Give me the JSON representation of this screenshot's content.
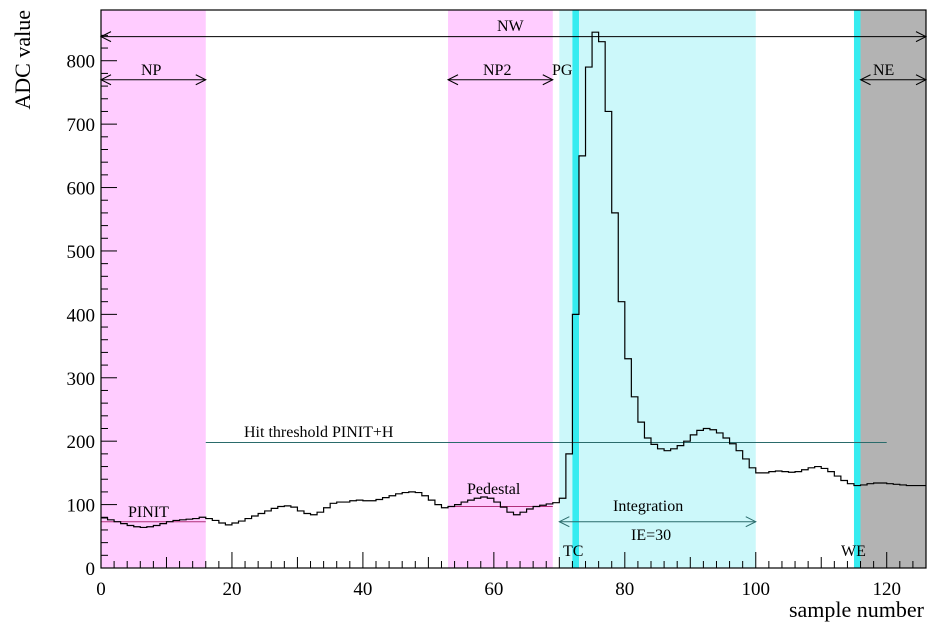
{
  "chart_data": {
    "type": "line",
    "xlabel": "sample number",
    "ylabel": "ADC value",
    "xlim": [
      0,
      126
    ],
    "ylim": [
      0,
      880
    ],
    "x_ticks": [
      0,
      20,
      40,
      60,
      80,
      100,
      120
    ],
    "y_ticks": [
      0,
      100,
      200,
      300,
      400,
      500,
      600,
      700,
      800
    ],
    "grid": false,
    "series": [
      {
        "style": "step",
        "values": [
          79,
          76,
          73,
          70,
          67,
          65,
          64,
          65,
          67,
          70,
          73,
          75,
          76,
          77,
          78,
          80,
          78,
          75,
          71,
          68,
          71,
          74,
          78,
          82,
          86,
          90,
          94,
          97,
          98,
          96,
          90,
          86,
          84,
          88,
          95,
          102,
          104,
          104,
          106,
          107,
          106,
          106,
          108,
          111,
          114,
          117,
          119,
          120,
          119,
          114,
          107,
          100,
          95,
          97,
          100,
          104,
          107,
          110,
          112,
          110,
          104,
          96,
          88,
          84,
          88,
          93,
          97,
          99,
          101,
          103,
          110,
          180,
          400,
          650,
          790,
          845,
          830,
          720,
          560,
          420,
          330,
          270,
          230,
          205,
          195,
          188,
          185,
          188,
          193,
          200,
          210,
          217,
          220,
          218,
          213,
          205,
          196,
          185,
          172,
          158,
          150,
          150,
          152,
          153,
          152,
          151,
          152,
          155,
          158,
          160,
          157,
          152,
          145,
          138,
          133,
          130,
          131,
          133,
          134,
          134,
          133,
          132,
          131,
          130,
          130,
          130
        ]
      }
    ],
    "bands": [
      {
        "x0": 0,
        "x1": 16,
        "color": "#ffccff"
      },
      {
        "x0": 53,
        "x1": 69,
        "color": "#ffccff"
      },
      {
        "x0": 70,
        "x1": 100,
        "color": "#ccf8fa"
      },
      {
        "x0": 72,
        "x1": 73,
        "color": "#35ecf0"
      },
      {
        "x0": 115,
        "x1": 116,
        "color": "#35ecf0"
      },
      {
        "x0": 116,
        "x1": 126,
        "color": "#b3b3b3"
      }
    ],
    "threshold": {
      "label": "Hit threshold PINIT+H",
      "y": 198,
      "x0": 16,
      "x1": 120,
      "color": "#2a6b6b"
    },
    "pinit_line": {
      "y": 73,
      "x0": 0,
      "x1": 16,
      "color": "#b0307a"
    },
    "pedestal_line": {
      "y": 97,
      "x0": 53,
      "x1": 69,
      "color": "#b0307a"
    },
    "arrows": [
      {
        "label": "NW",
        "x0": 0,
        "x1": 126,
        "y": 838
      },
      {
        "label": "NP",
        "x0": 0,
        "x1": 16,
        "y": 770
      },
      {
        "label": "NP2",
        "x0": 53,
        "x1": 69,
        "y": 770
      },
      {
        "label": "NE",
        "x0": 116,
        "x1": 126,
        "y": 770
      },
      {
        "label": "",
        "x0": 70,
        "x1": 100,
        "y": 73
      }
    ],
    "labels": {
      "pg": "PG",
      "pinit": "PINIT",
      "pedestal": "Pedestal",
      "integration": "Integration",
      "ie": "IE=30",
      "tc": "TC",
      "we": "WE"
    }
  }
}
